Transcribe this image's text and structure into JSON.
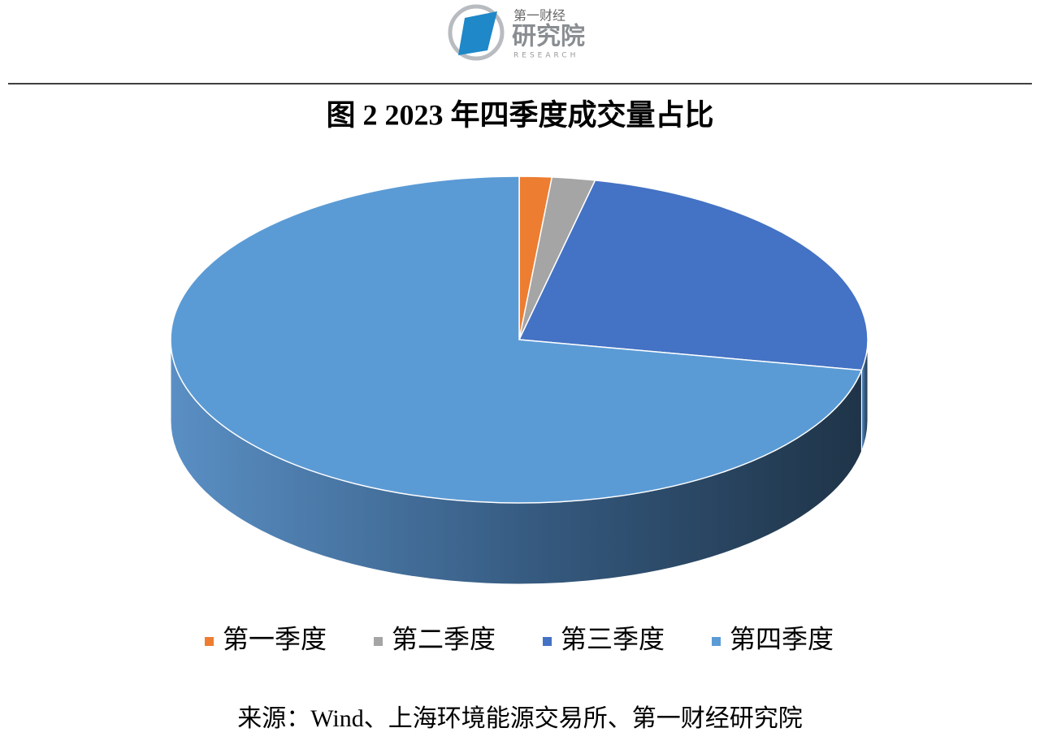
{
  "logo": {
    "top": "第一财经",
    "main": "研究院",
    "sub": "RESEARCH"
  },
  "chart_data": {
    "type": "pie3d",
    "title": "图 2 2023 年四季度成交量占比",
    "categories": [
      "第一季度",
      "第二季度",
      "第三季度",
      "第四季度"
    ],
    "values": [
      1.5,
      2,
      24.5,
      72
    ],
    "colors": [
      "#ED7D31",
      "#A5A5A5",
      "#4472C4",
      "#5B9BD5"
    ],
    "legend": "bottom",
    "source": "来源：Wind、上海环境能源交易所、第一财经研究院"
  }
}
